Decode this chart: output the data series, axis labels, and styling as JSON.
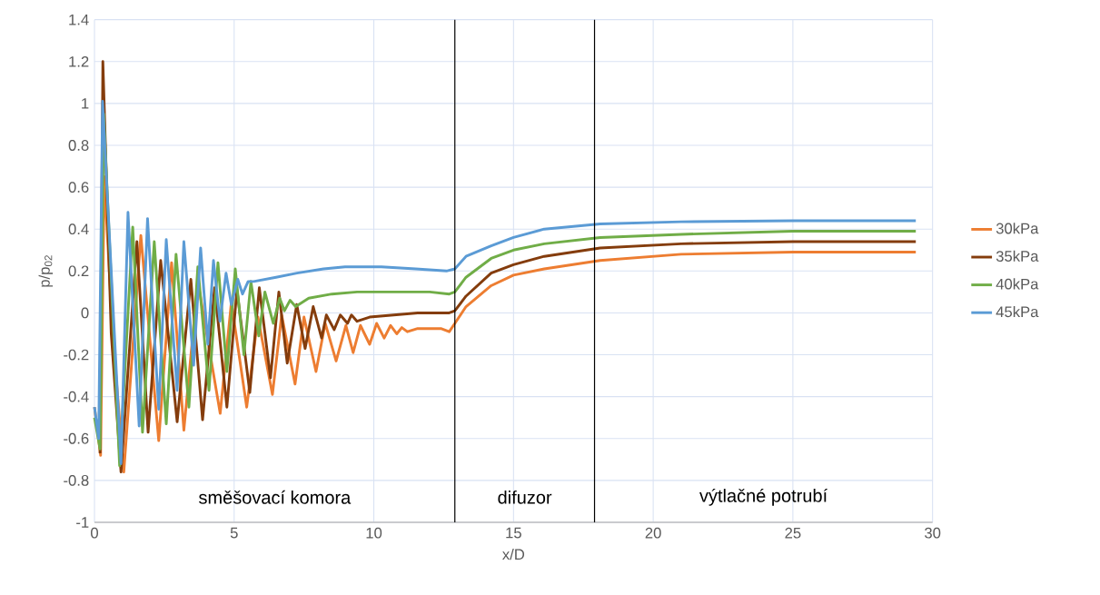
{
  "chart_data": {
    "type": "line",
    "xlabel": "x/D",
    "ylabel": "p/p$_{02}$",
    "xlim": [
      0,
      30
    ],
    "ylim": [
      -1,
      1.4
    ],
    "xticks": [
      0,
      5,
      10,
      15,
      20,
      25,
      30
    ],
    "yticks": [
      -1,
      -0.8,
      -0.6,
      -0.4,
      -0.2,
      0,
      0.2,
      0.4,
      0.6,
      0.8,
      1,
      1.2,
      1.4
    ],
    "grid": true,
    "legend": "right",
    "line_style": "solid",
    "series": [
      {
        "name": "30kPa",
        "color": "#ed7d31",
        "x": [
          0,
          0.22,
          0.35,
          0.65,
          1.05,
          1.66,
          2.3,
          2.76,
          3.2,
          3.7,
          4.5,
          4.9,
          5.45,
          5.85,
          6.37,
          6.7,
          7.18,
          7.5,
          7.93,
          8.26,
          8.65,
          9.0,
          9.26,
          9.52,
          9.85,
          10.1,
          10.37,
          10.6,
          10.82,
          11.0,
          11.2,
          11.57,
          12.4,
          12.7,
          12.9,
          13.3,
          14.2,
          15,
          16.1,
          18.1,
          21,
          25,
          29.4
        ],
        "values": [
          -0.45,
          -0.68,
          0.65,
          -0.1,
          -0.76,
          0.37,
          -0.61,
          0.24,
          -0.56,
          0.15,
          -0.48,
          0.05,
          -0.45,
          -0.02,
          -0.39,
          -0.01,
          -0.34,
          -0.02,
          -0.28,
          -0.05,
          -0.23,
          -0.06,
          -0.19,
          -0.06,
          -0.15,
          -0.05,
          -0.12,
          -0.06,
          -0.1,
          -0.07,
          -0.09,
          -0.075,
          -0.075,
          -0.09,
          -0.05,
          0.03,
          0.13,
          0.18,
          0.21,
          0.25,
          0.28,
          0.29,
          0.29
        ]
      },
      {
        "name": "35kPa",
        "color": "#843c0c",
        "x": [
          0.2,
          0.3,
          0.6,
          0.95,
          1.52,
          1.92,
          2.37,
          2.96,
          3.45,
          3.87,
          4.3,
          4.74,
          5.1,
          5.56,
          5.9,
          6.3,
          6.6,
          6.9,
          7.24,
          7.54,
          7.83,
          8.13,
          8.3,
          8.58,
          8.8,
          9.06,
          9.2,
          9.4,
          9.85,
          11.57,
          12.7,
          12.9,
          13.3,
          14.2,
          15,
          16.1,
          18.1,
          21,
          25,
          29.4
        ],
        "values": [
          -0.67,
          1.2,
          -0.1,
          -0.76,
          0.34,
          -0.57,
          0.25,
          -0.52,
          0.16,
          -0.51,
          0.12,
          -0.45,
          0.11,
          -0.38,
          0.12,
          -0.31,
          0.1,
          -0.24,
          0.04,
          -0.17,
          0.03,
          -0.12,
          -0.01,
          -0.08,
          -0.01,
          -0.05,
          -0.01,
          -0.04,
          -0.02,
          0.0,
          0.0,
          0.01,
          0.08,
          0.19,
          0.23,
          0.27,
          0.31,
          0.33,
          0.34,
          0.34
        ]
      },
      {
        "name": "40kPa",
        "color": "#70ad47",
        "x": [
          0,
          0.2,
          0.33,
          0.9,
          1.37,
          1.72,
          2.14,
          2.57,
          2.92,
          3.38,
          3.7,
          4.1,
          4.42,
          4.74,
          5.04,
          5.35,
          5.6,
          5.88,
          6.1,
          6.4,
          6.63,
          6.8,
          7.0,
          7.2,
          7.67,
          8.5,
          9.4,
          10.7,
          12.0,
          12.7,
          12.9,
          13.3,
          14.2,
          15,
          16.1,
          18.1,
          21,
          25,
          29.4
        ],
        "values": [
          -0.5,
          -0.65,
          0.95,
          -0.73,
          0.41,
          -0.57,
          0.34,
          -0.53,
          0.28,
          -0.45,
          0.22,
          -0.37,
          0.24,
          -0.28,
          0.21,
          -0.2,
          0.15,
          -0.11,
          0.1,
          -0.05,
          0.07,
          0.01,
          0.06,
          0.03,
          0.07,
          0.09,
          0.1,
          0.1,
          0.1,
          0.09,
          0.1,
          0.17,
          0.26,
          0.3,
          0.33,
          0.36,
          0.375,
          0.39,
          0.39
        ]
      },
      {
        "name": "45kPa",
        "color": "#5b9bd5",
        "x": [
          0,
          0.15,
          0.29,
          0.95,
          1.2,
          1.6,
          1.9,
          2.3,
          2.57,
          2.96,
          3.2,
          3.55,
          3.8,
          4.06,
          4.26,
          4.49,
          4.71,
          4.9,
          5.13,
          5.3,
          5.5,
          5.7,
          6.5,
          7.25,
          8.2,
          8.97,
          10.27,
          11.5,
          12.6,
          12.9,
          13.3,
          14.2,
          15,
          16.1,
          18.1,
          21,
          25,
          29.4
        ],
        "values": [
          -0.45,
          -0.6,
          1.01,
          -0.72,
          0.48,
          -0.54,
          0.45,
          -0.46,
          0.35,
          -0.37,
          0.34,
          -0.25,
          0.31,
          -0.15,
          0.25,
          -0.04,
          0.19,
          0.04,
          0.16,
          0.09,
          0.15,
          0.15,
          0.17,
          0.19,
          0.21,
          0.22,
          0.22,
          0.21,
          0.2,
          0.21,
          0.27,
          0.32,
          0.36,
          0.4,
          0.425,
          0.435,
          0.44,
          0.44
        ]
      }
    ],
    "ref_lines": [
      {
        "axis": "x",
        "value": 12.9,
        "color": "#000000"
      },
      {
        "axis": "x",
        "value": 17.9,
        "color": "#000000"
      }
    ],
    "annotations": [
      "směšovací komora",
      "difuzor",
      "výtlačné potrubí"
    ]
  }
}
